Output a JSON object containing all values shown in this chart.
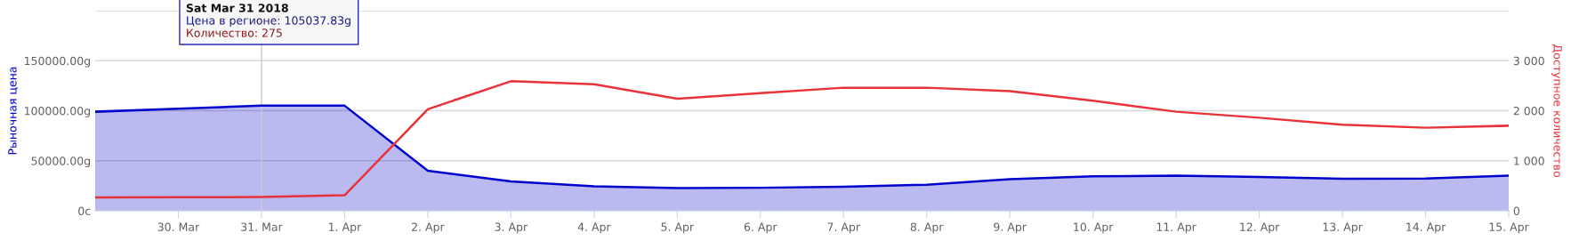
{
  "chart_data": {
    "type": "area",
    "ylabel": "Рыночная цена",
    "y2label": "Доступное количество",
    "x": [
      "2018-03-29",
      "2018-03-30",
      "2018-03-31",
      "2018-04-01",
      "2018-04-02",
      "2018-04-03",
      "2018-04-04",
      "2018-04-05",
      "2018-04-06",
      "2018-04-07",
      "2018-04-08",
      "2018-04-09",
      "2018-04-10",
      "2018-04-11",
      "2018-04-12",
      "2018-04-13",
      "2018-04-14",
      "2018-04-15"
    ],
    "series": [
      {
        "color": "#0000cc",
        "values": [
          99000,
          102000,
          105037.83,
          105000,
          40000,
          29300,
          24400,
          22600,
          23000,
          24000,
          26000,
          31500,
          34400,
          35100,
          33700,
          31900,
          32200,
          35100
        ]
      },
      {
        "type": "line",
        "color": "#e8333a",
        "axis": "y2",
        "values": [
          265,
          270,
          275,
          310,
          2030,
          2590,
          2530,
          2240,
          2350,
          2460,
          2460,
          2390,
          2200,
          1980,
          1860,
          1720,
          1660,
          1700
        ]
      }
    ],
    "xlim": [
      "2018-03-29",
      "2018-04-15"
    ],
    "xticks": [
      {
        "value": "2018-03-30",
        "label": "30. Mar"
      },
      {
        "value": "2018-03-31",
        "label": "31. Mar"
      },
      {
        "value": "2018-04-01",
        "label": "1. Apr"
      },
      {
        "value": "2018-04-02",
        "label": "2. Apr"
      },
      {
        "value": "2018-04-03",
        "label": "3. Apr"
      },
      {
        "value": "2018-04-04",
        "label": "4. Apr"
      },
      {
        "value": "2018-04-05",
        "label": "5. Apr"
      },
      {
        "value": "2018-04-06",
        "label": "6. Apr"
      },
      {
        "value": "2018-04-07",
        "label": "7. Apr"
      },
      {
        "value": "2018-04-08",
        "label": "8. Apr"
      },
      {
        "value": "2018-04-09",
        "label": "9. Apr"
      },
      {
        "value": "2018-04-10",
        "label": "10. Apr"
      },
      {
        "value": "2018-04-11",
        "label": "11. Apr"
      },
      {
        "value": "2018-04-12",
        "label": "12. Apr"
      },
      {
        "value": "2018-04-13",
        "label": "13. Apr"
      },
      {
        "value": "2018-04-14",
        "label": "14. Apr"
      },
      {
        "value": "2018-04-15",
        "label": "15. Apr"
      }
    ],
    "ylim": [
      0,
      200000
    ],
    "yticks": [
      {
        "value": 0,
        "label": "0c"
      },
      {
        "value": 50000,
        "label": "50000.00g"
      },
      {
        "value": 100000,
        "label": "100000.00g"
      },
      {
        "value": 150000,
        "label": "150000.00g"
      },
      {
        "value": 200000,
        "label": null
      }
    ],
    "y2lim": [
      0,
      4000
    ],
    "y2ticks": [
      0,
      {
        "value": 1000,
        "label": "1 000"
      },
      {
        "value": 2000,
        "label": "2 000"
      },
      {
        "value": 3000,
        "label": "3 000"
      },
      {
        "value": 4000,
        "label": null
      }
    ],
    "ref_lines": [
      {
        "axis": "x",
        "value": "2018-03-31",
        "label": null,
        "color": "#c8c8d8"
      }
    ],
    "annotations": [
      "Sat Mar 31 2018",
      "Цена в регионе: 105037.83g",
      "Количество: 275"
    ],
    "grid": "y",
    "legend": false,
    "marker": "none",
    "line_style": "solid"
  }
}
